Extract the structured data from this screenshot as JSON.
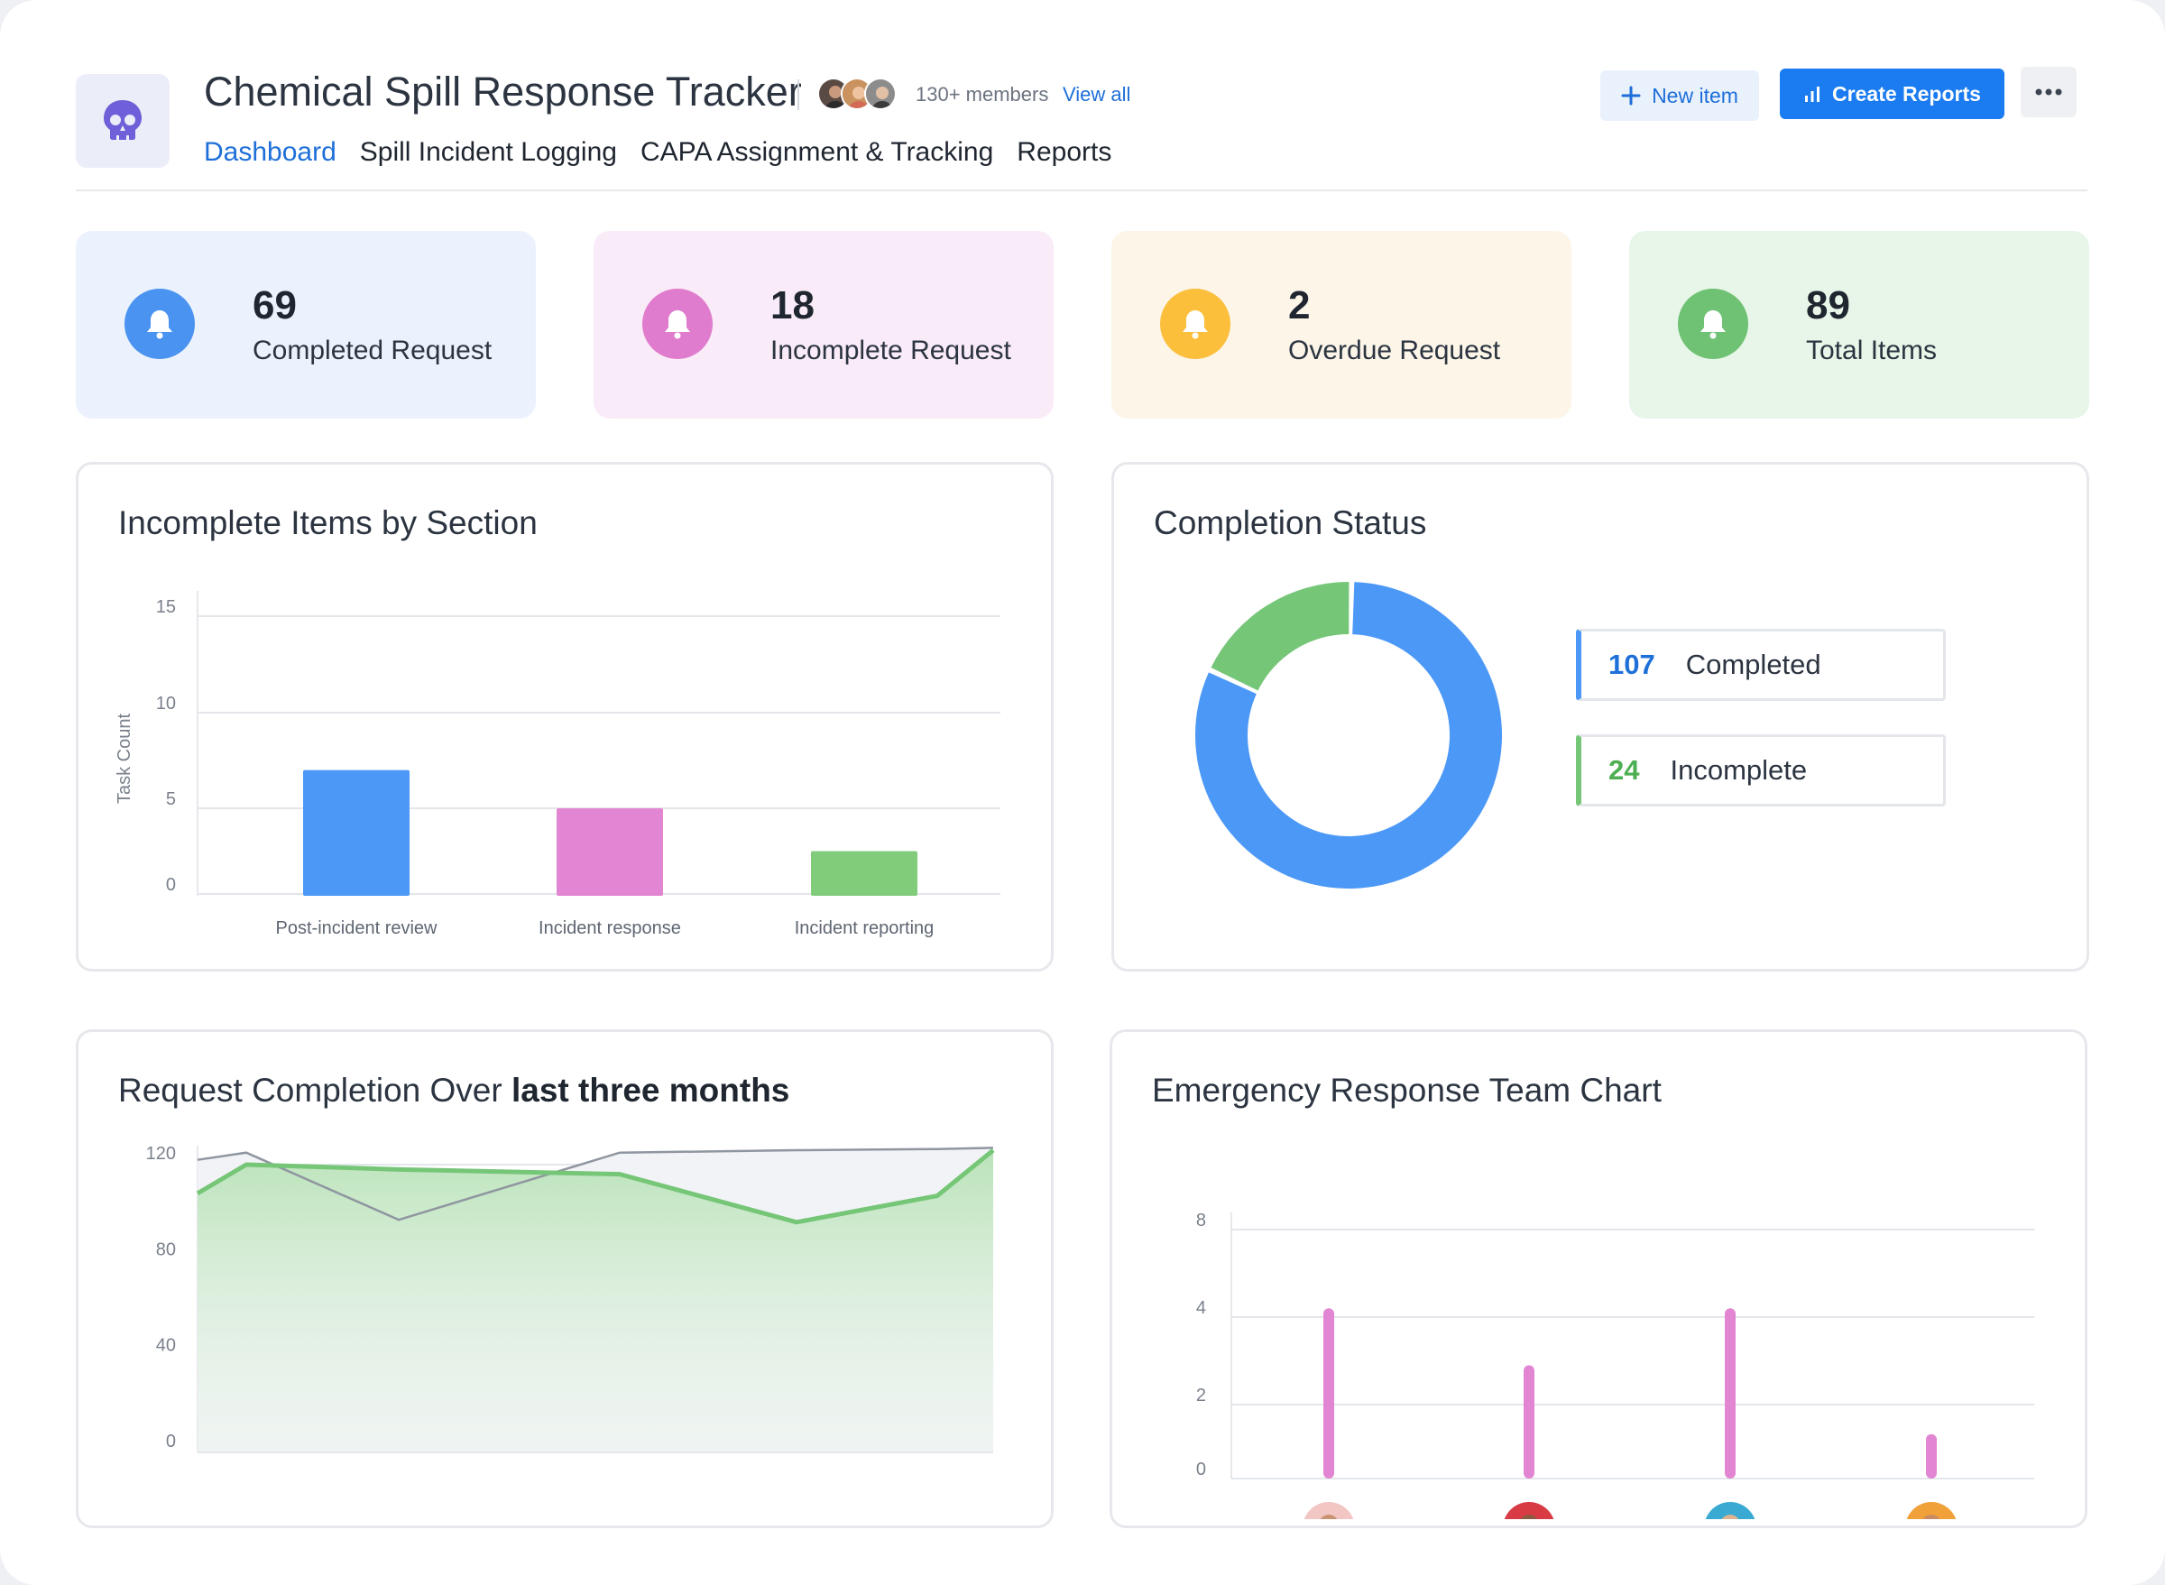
{
  "app": {
    "title": "Chemical Spill Response Tracker",
    "members_text": "130+ members",
    "view_all": "View all",
    "logo_icon": "skull-icon"
  },
  "nav": {
    "tabs": [
      {
        "label": "Dashboard",
        "active": true
      },
      {
        "label": "Spill Incident Logging",
        "active": false
      },
      {
        "label": "CAPA Assignment & Tracking",
        "active": false
      },
      {
        "label": "Reports",
        "active": false
      }
    ]
  },
  "actions": {
    "new_item": "New item",
    "create_reports": "Create Reports"
  },
  "stats": [
    {
      "value": "69",
      "label": "Completed Request",
      "color": "#4a93f0",
      "bg": "#ebf2fd"
    },
    {
      "value": "18",
      "label": "Incomplete Request",
      "color": "#e07ccd",
      "bg": "#f9ebf7"
    },
    {
      "value": "2",
      "label": "Overdue Request",
      "color": "#fbbf3c",
      "bg": "#fcf5e8"
    },
    {
      "value": "89",
      "label": "Total Items",
      "color": "#6fc274",
      "bg": "#e7f6e8"
    }
  ],
  "panels": {
    "bar": {
      "title": "Incomplete Items by Section"
    },
    "donut": {
      "title": "Completion Status"
    },
    "area": {
      "title_prefix": "Request Completion Over",
      "title_bold": "last three months"
    },
    "team": {
      "title": "Emergency Response Team Chart"
    }
  },
  "chart_data": [
    {
      "type": "bar",
      "title": "Incomplete Items by Section",
      "categories": [
        "Post-incident review",
        "Incident response",
        "Incident reporting"
      ],
      "values": [
        7,
        5,
        2.5
      ],
      "colors": [
        "#4b98f7",
        "#e286d3",
        "#80cc7b"
      ],
      "ylabel": "Task Count",
      "xlabel": "",
      "yticks": [
        0,
        5,
        10,
        15
      ],
      "ylim": [
        0,
        15
      ]
    },
    {
      "type": "pie",
      "title": "Completion Status",
      "labels": [
        "Completed",
        "Incomplete"
      ],
      "values": [
        107,
        24
      ],
      "colors": [
        "#4b98f7",
        "#76c678"
      ]
    },
    {
      "type": "area",
      "title": "Request Completion Over last three months",
      "yticks": [
        0,
        40,
        80,
        120
      ],
      "ylim": [
        0,
        128
      ],
      "series": [
        {
          "values": [
            108,
            120,
            118,
            116,
            96,
            107,
            126
          ],
          "color": "#76c678"
        },
        {
          "values": [
            122,
            125,
            97,
            125,
            126,
            126.5,
            127
          ],
          "color": "#8f96a0"
        }
      ],
      "xlabel": "",
      "ylabel": ""
    },
    {
      "type": "bar",
      "title": "Emergency Response Team Chart",
      "categories": [
        "member-1",
        "member-2",
        "member-3",
        "member-4"
      ],
      "values": [
        4.4,
        2.9,
        4.4,
        1.2
      ],
      "color": "#e286d3",
      "yticks": [
        0,
        2,
        4,
        8
      ],
      "xlabel": "",
      "ylabel": ""
    }
  ]
}
